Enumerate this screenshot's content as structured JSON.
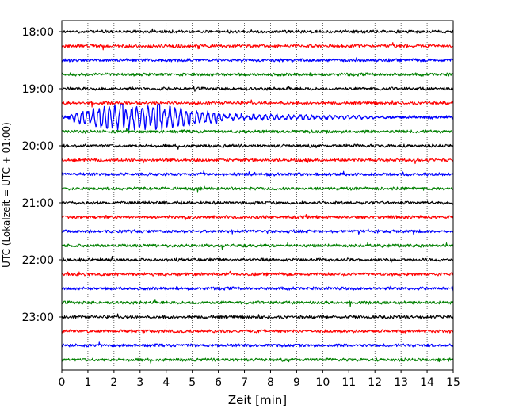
{
  "chart_data": {
    "type": "line",
    "title": "",
    "xlabel": "Zeit  [min]",
    "ylabel": "UTC (Lokalzeit = UTC + 01:00)",
    "xlim": [
      0,
      15
    ],
    "x_ticks": [
      "0",
      "1",
      "2",
      "3",
      "4",
      "5",
      "6",
      "7",
      "8",
      "9",
      "10",
      "11",
      "12",
      "13",
      "14",
      "15"
    ],
    "y_ticks": [
      "18:00",
      "19:00",
      "20:00",
      "21:00",
      "22:00",
      "23:00"
    ],
    "grid": "vertical dotted lines at each minute",
    "trace_colors": [
      "#000000",
      "#ff0000",
      "#0000ff",
      "#008000"
    ],
    "traces_per_hour": 4,
    "minutes_per_trace": 15,
    "hours": [
      "18:00",
      "19:00",
      "20:00",
      "21:00",
      "22:00",
      "23:00"
    ],
    "event": {
      "trace_start": "19:30",
      "color": "#0000ff",
      "strong_phase_minutes": [
        0.3,
        6.2
      ],
      "coda_end_minute": 12.5
    }
  }
}
